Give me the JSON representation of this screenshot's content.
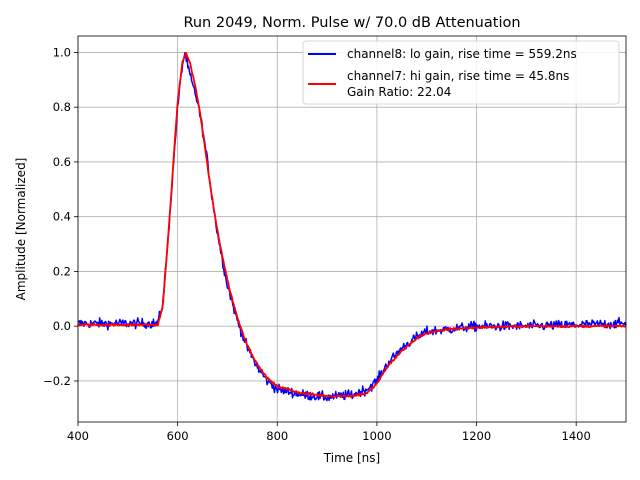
{
  "chart_data": {
    "type": "line",
    "title": "Run 2049, Norm. Pulse w/ 70.0 dB Attenuation",
    "xlabel": "Time [ns]",
    "ylabel": "Amplitude [Normalized]",
    "xlim": [
      400,
      1500
    ],
    "ylim": [
      -0.35,
      1.06
    ],
    "xticks": [
      400,
      600,
      800,
      1000,
      1200,
      1400
    ],
    "xtick_labels": [
      "400",
      "600",
      "800",
      "1000",
      "1200",
      "1400"
    ],
    "yticks": [
      -0.2,
      0.0,
      0.2,
      0.4,
      0.6,
      0.8,
      1.0
    ],
    "ytick_labels": [
      "−0.2",
      "0.0",
      "0.2",
      "0.4",
      "0.6",
      "0.8",
      "1.0"
    ],
    "grid": true,
    "legend_location": "upper right",
    "series": [
      {
        "name": "channel8: lo gain, rise time = 559.2ns",
        "color": "#0000ff",
        "noise": 0.018,
        "x": [
          400,
          560,
          570,
          580,
          590,
          600,
          610,
          615,
          620,
          630,
          640,
          650,
          660,
          670,
          680,
          690,
          700,
          720,
          740,
          760,
          780,
          800,
          850,
          900,
          950,
          980,
          1000,
          1020,
          1050,
          1080,
          1100,
          1150,
          1200,
          1300,
          1400,
          1500
        ],
        "y": [
          0.01,
          0.01,
          0.08,
          0.3,
          0.55,
          0.8,
          0.96,
          1.0,
          0.95,
          0.88,
          0.82,
          0.72,
          0.6,
          0.46,
          0.34,
          0.24,
          0.15,
          0.02,
          -0.08,
          -0.15,
          -0.2,
          -0.23,
          -0.25,
          -0.26,
          -0.25,
          -0.23,
          -0.2,
          -0.14,
          -0.08,
          -0.04,
          -0.02,
          -0.01,
          0.0,
          0.0,
          0.005,
          0.01
        ]
      },
      {
        "name": "channel7: hi gain, rise time = 45.8ns",
        "color": "#ff0000",
        "noise": 0.004,
        "x": [
          400,
          560,
          570,
          580,
          590,
          600,
          610,
          617,
          625,
          635,
          645,
          655,
          665,
          675,
          685,
          695,
          705,
          720,
          740,
          760,
          780,
          800,
          850,
          900,
          950,
          980,
          1000,
          1020,
          1050,
          1080,
          1100,
          1150,
          1200,
          1300,
          1400,
          1500
        ],
        "y": [
          0.005,
          0.005,
          0.07,
          0.3,
          0.56,
          0.82,
          0.97,
          0.998,
          0.96,
          0.88,
          0.78,
          0.65,
          0.52,
          0.4,
          0.3,
          0.21,
          0.13,
          0.03,
          -0.07,
          -0.14,
          -0.19,
          -0.22,
          -0.245,
          -0.255,
          -0.255,
          -0.245,
          -0.21,
          -0.15,
          -0.09,
          -0.045,
          -0.025,
          -0.01,
          -0.005,
          0.0,
          0.0,
          0.0
        ]
      }
    ],
    "annotations": [
      "Gain Ratio: 22.04"
    ]
  }
}
